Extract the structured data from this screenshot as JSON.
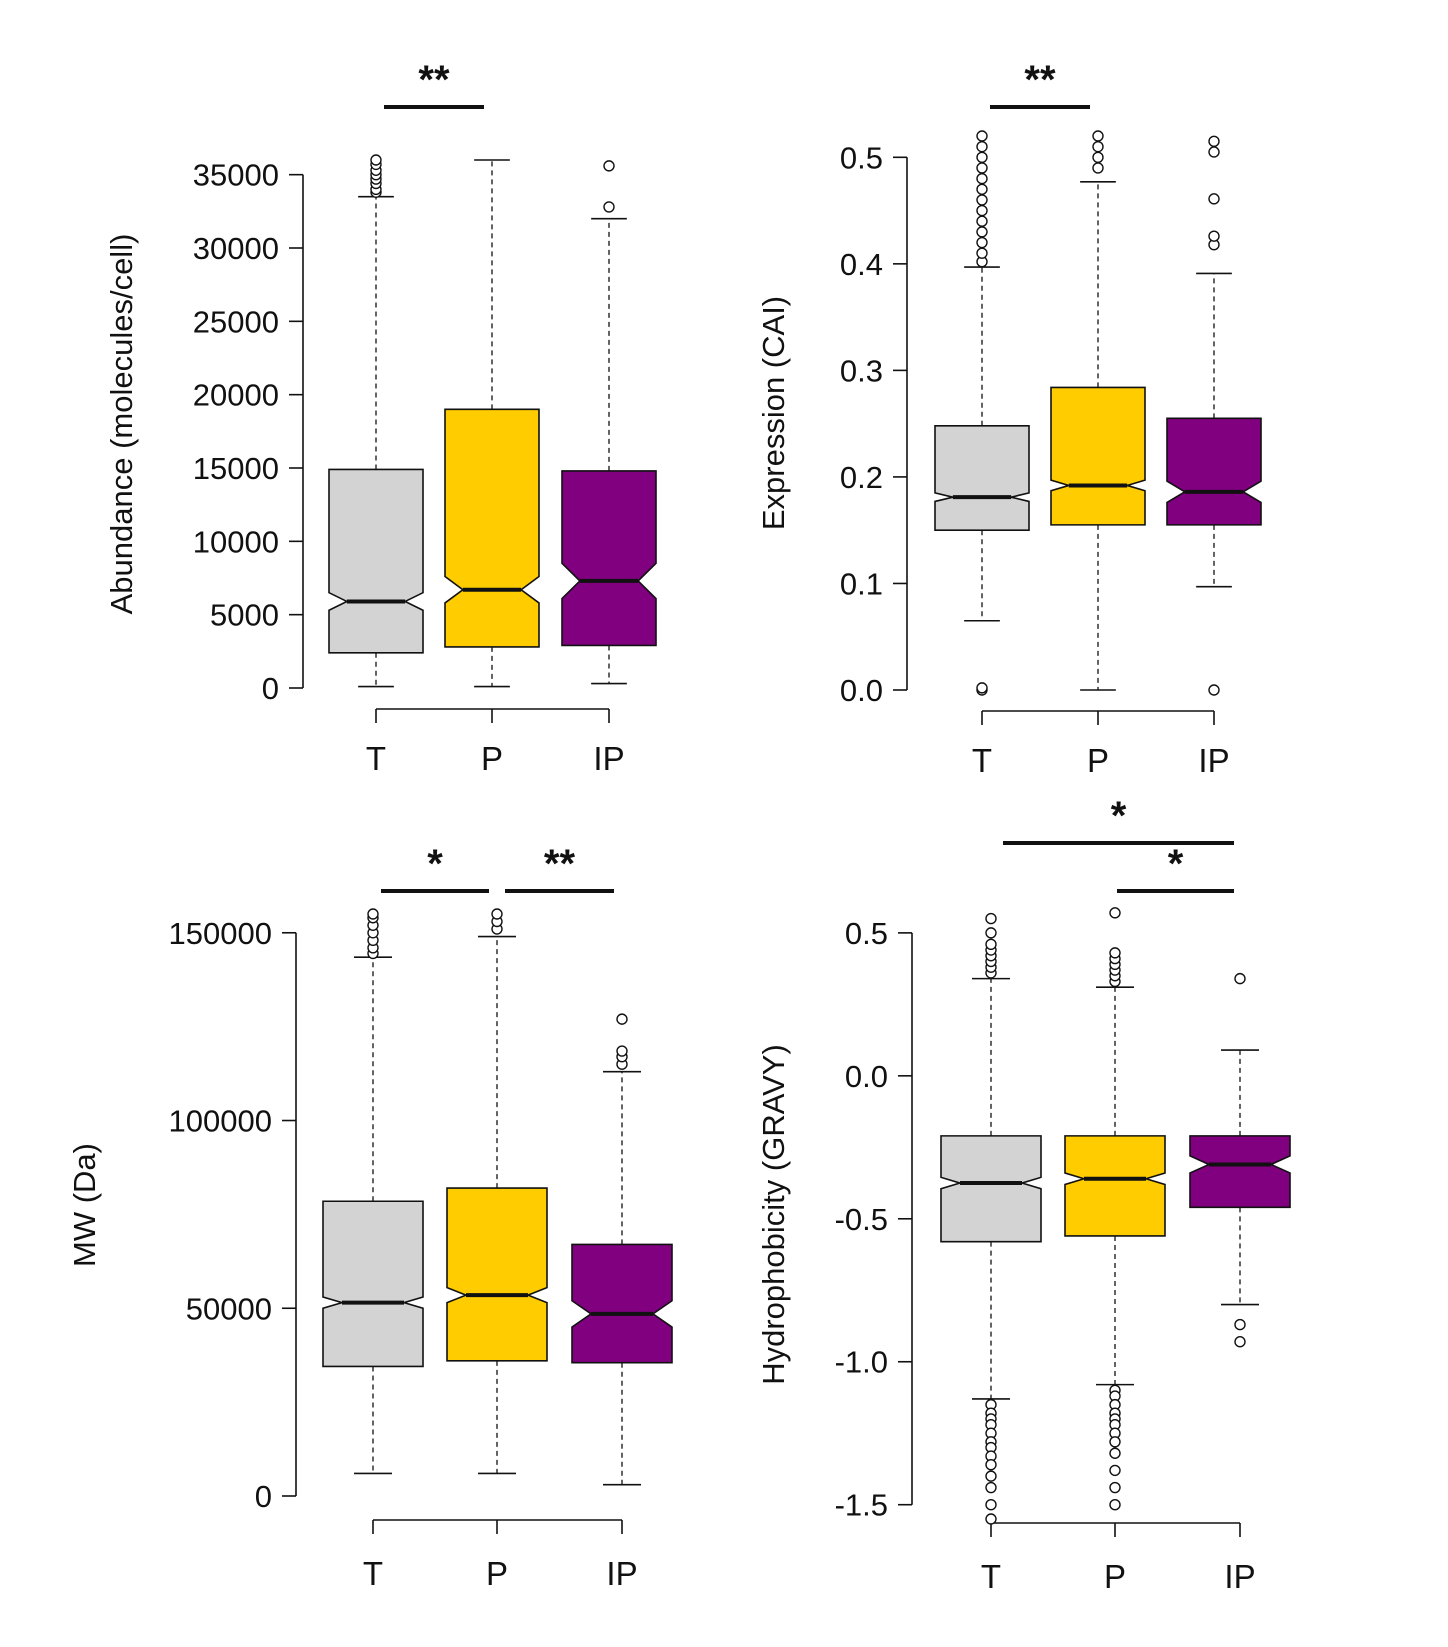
{
  "colors": {
    "T": "#d3d3d3",
    "P": "#ffcc00",
    "IP": "#800080",
    "line": "#111111"
  },
  "chart_data": [
    {
      "type": "boxplot",
      "ylabel": "Abundance (molecules/cell)",
      "categories": [
        "T",
        "P",
        "IP"
      ],
      "ylim": [
        0,
        36000
      ],
      "yticks": [
        0,
        5000,
        10000,
        15000,
        20000,
        25000,
        30000,
        35000
      ],
      "ytick_labels": [
        "0",
        "5000",
        "10000",
        "15000",
        "20000",
        "25000",
        "30000",
        "35000"
      ],
      "boxes": [
        {
          "name": "T",
          "whisker_low": 100,
          "q1": 2400,
          "median": 5900,
          "q3": 14900,
          "whisker_high": 33500,
          "notch_low": 5300,
          "notch_high": 6500,
          "outliers": [
            33800,
            34000,
            34400,
            34700,
            35000,
            35300,
            35700,
            36000
          ]
        },
        {
          "name": "P",
          "whisker_low": 100,
          "q1": 2800,
          "median": 6700,
          "q3": 19000,
          "whisker_high": 36000,
          "notch_low": 5800,
          "notch_high": 7600,
          "outliers": []
        },
        {
          "name": "IP",
          "whisker_low": 300,
          "q1": 2900,
          "median": 7300,
          "q3": 14800,
          "whisker_high": 32000,
          "notch_low": 6100,
          "notch_high": 8500,
          "outliers": [
            32800,
            35600
          ]
        }
      ],
      "significance": [
        {
          "from": "T",
          "to": "P",
          "label": "**",
          "level": 1
        }
      ]
    },
    {
      "type": "boxplot",
      "ylabel": "Expression (CAI)",
      "categories": [
        "T",
        "P",
        "IP"
      ],
      "ylim": [
        0,
        0.52
      ],
      "yticks": [
        0.0,
        0.1,
        0.2,
        0.3,
        0.4,
        0.5
      ],
      "ytick_labels": [
        "0.0",
        "0.1",
        "0.2",
        "0.3",
        "0.4",
        "0.5"
      ],
      "boxes": [
        {
          "name": "T",
          "whisker_low": 0.065,
          "q1": 0.15,
          "median": 0.181,
          "q3": 0.248,
          "whisker_high": 0.397,
          "notch_low": 0.177,
          "notch_high": 0.185,
          "outliers": [
            0.0,
            0.002,
            0.402,
            0.41,
            0.42,
            0.43,
            0.44,
            0.45,
            0.46,
            0.47,
            0.48,
            0.49,
            0.5,
            0.51,
            0.52
          ]
        },
        {
          "name": "P",
          "whisker_low": 0.0,
          "q1": 0.155,
          "median": 0.192,
          "q3": 0.284,
          "whisker_high": 0.477,
          "notch_low": 0.187,
          "notch_high": 0.197,
          "outliers": [
            0.49,
            0.5,
            0.51,
            0.52
          ]
        },
        {
          "name": "IP",
          "whisker_low": 0.097,
          "q1": 0.155,
          "median": 0.186,
          "q3": 0.255,
          "whisker_high": 0.391,
          "notch_low": 0.176,
          "notch_high": 0.196,
          "outliers": [
            0.0,
            0.418,
            0.426,
            0.461,
            0.505,
            0.515
          ]
        }
      ],
      "significance": [
        {
          "from": "T",
          "to": "P",
          "label": "**",
          "level": 1
        }
      ]
    },
    {
      "type": "boxplot",
      "ylabel": "MW (Da)",
      "categories": [
        "T",
        "P",
        "IP"
      ],
      "ylim": [
        0,
        155000
      ],
      "yticks": [
        0,
        50000,
        100000,
        150000
      ],
      "ytick_labels": [
        "0",
        "50000",
        "100000",
        "150000"
      ],
      "boxes": [
        {
          "name": "T",
          "whisker_low": 6000,
          "q1": 34500,
          "median": 51500,
          "q3": 78500,
          "whisker_high": 143500,
          "notch_low": 50000,
          "notch_high": 53000,
          "outliers": [
            144500,
            146000,
            148000,
            150000,
            152000,
            154000,
            155000
          ]
        },
        {
          "name": "P",
          "whisker_low": 6000,
          "q1": 36000,
          "median": 53500,
          "q3": 82000,
          "whisker_high": 149000,
          "notch_low": 51500,
          "notch_high": 55500,
          "outliers": [
            151000,
            153000,
            155000
          ]
        },
        {
          "name": "IP",
          "whisker_low": 3000,
          "q1": 35500,
          "median": 48500,
          "q3": 67000,
          "whisker_high": 113000,
          "notch_low": 45000,
          "notch_high": 52000,
          "outliers": [
            115000,
            117000,
            118500,
            127000
          ]
        }
      ],
      "significance": [
        {
          "from": "T",
          "to": "P",
          "label": "*",
          "level": 1
        },
        {
          "from": "P",
          "to": "IP",
          "label": "**",
          "level": 1
        }
      ]
    },
    {
      "type": "boxplot",
      "ylabel": "Hydrophobicity (GRAVY)",
      "categories": [
        "T",
        "P",
        "IP"
      ],
      "ylim": [
        -1.55,
        0.58
      ],
      "yticks": [
        -1.5,
        -1.0,
        -0.5,
        0.0,
        0.5
      ],
      "ytick_labels": [
        "-1.5",
        "-1.0",
        "-0.5",
        "0.0",
        "0.5"
      ],
      "boxes": [
        {
          "name": "T",
          "whisker_low": -1.13,
          "q1": -0.58,
          "median": -0.375,
          "q3": -0.21,
          "whisker_high": 0.34,
          "notch_low": -0.395,
          "notch_high": -0.355,
          "outliers": [
            0.36,
            0.38,
            0.4,
            0.42,
            0.44,
            0.46,
            0.5,
            0.55,
            -1.15,
            -1.18,
            -1.2,
            -1.22,
            -1.25,
            -1.28,
            -1.3,
            -1.33,
            -1.36,
            -1.4,
            -1.44,
            -1.5,
            -1.55
          ]
        },
        {
          "name": "P",
          "whisker_low": -1.08,
          "q1": -0.56,
          "median": -0.36,
          "q3": -0.21,
          "whisker_high": 0.31,
          "notch_low": -0.38,
          "notch_high": -0.34,
          "outliers": [
            0.33,
            0.35,
            0.37,
            0.39,
            0.41,
            0.43,
            0.57,
            -1.1,
            -1.12,
            -1.15,
            -1.18,
            -1.2,
            -1.22,
            -1.25,
            -1.28,
            -1.32,
            -1.38,
            -1.44,
            -1.5
          ]
        },
        {
          "name": "IP",
          "whisker_low": -0.8,
          "q1": -0.46,
          "median": -0.31,
          "q3": -0.21,
          "whisker_high": 0.09,
          "notch_low": -0.34,
          "notch_high": -0.28,
          "outliers": [
            0.34,
            -0.87,
            -0.93
          ]
        }
      ],
      "significance": [
        {
          "from": "T",
          "to": "IP",
          "label": "*",
          "level": 2
        },
        {
          "from": "P",
          "to": "IP",
          "label": "*",
          "level": 1
        }
      ]
    }
  ]
}
